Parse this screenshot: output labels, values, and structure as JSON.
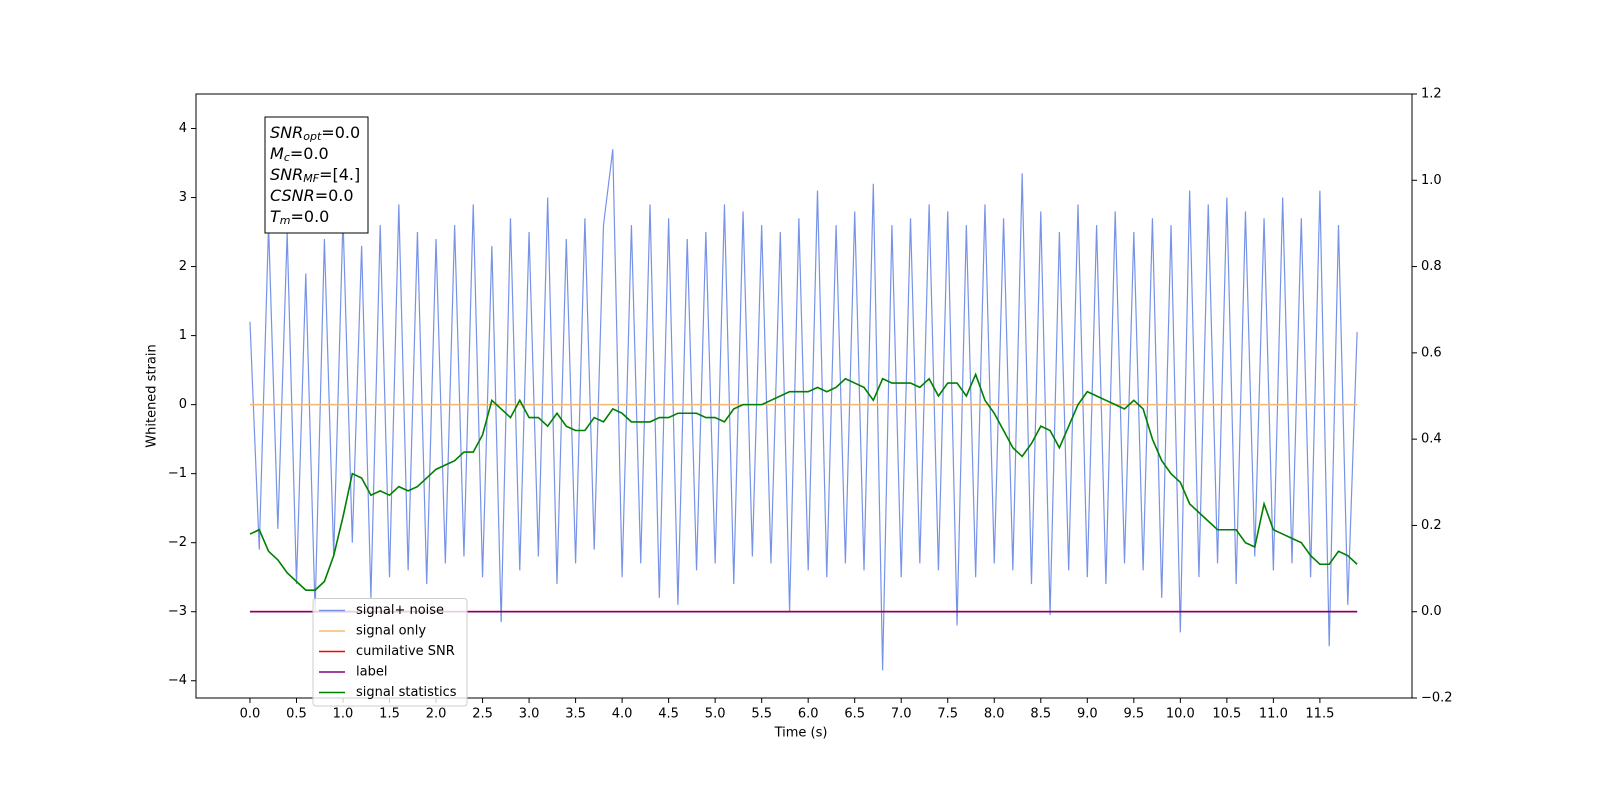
{
  "chart_data": {
    "type": "line",
    "xlabel": "Time (s)",
    "ylabel": "Whitened strain",
    "xlim": [
      -0.58,
      12.49
    ],
    "ylim": [
      -4.25,
      4.5
    ],
    "y2lim": [
      -0.2,
      1.2
    ],
    "xticks": [
      {
        "value": 0,
        "label": "0.0"
      },
      {
        "value": 0.5,
        "label": "0.5"
      },
      {
        "value": 1,
        "label": "1.0"
      },
      {
        "value": 1.5,
        "label": "1.5"
      },
      {
        "value": 2,
        "label": "2.0"
      },
      {
        "value": 2.5,
        "label": "2.5"
      },
      {
        "value": 3,
        "label": "3.0"
      },
      {
        "value": 3.5,
        "label": "3.5"
      },
      {
        "value": 4,
        "label": "4.0"
      },
      {
        "value": 4.5,
        "label": "4.5"
      },
      {
        "value": 5,
        "label": "5.0"
      },
      {
        "value": 5.5,
        "label": "5.5"
      },
      {
        "value": 6,
        "label": "6.0"
      },
      {
        "value": 6.5,
        "label": "6.5"
      },
      {
        "value": 7,
        "label": "7.0"
      },
      {
        "value": 7.5,
        "label": "7.5"
      },
      {
        "value": 8,
        "label": "8.0"
      },
      {
        "value": 8.5,
        "label": "8.5"
      },
      {
        "value": 9,
        "label": "9.0"
      },
      {
        "value": 9.5,
        "label": "9.5"
      },
      {
        "value": 10,
        "label": "10.0"
      },
      {
        "value": 10.5,
        "label": "10.5"
      },
      {
        "value": 11,
        "label": "11.0"
      },
      {
        "value": 11.5,
        "label": "11.5"
      }
    ],
    "yticks": [
      {
        "value": -4,
        "label": "−4"
      },
      {
        "value": -3,
        "label": "−3"
      },
      {
        "value": -2,
        "label": "−2"
      },
      {
        "value": -1,
        "label": "−1"
      },
      0,
      1,
      2,
      3,
      4
    ],
    "y2ticks": [
      {
        "value": -0.2,
        "label": "−0.2"
      },
      {
        "value": 0,
        "label": "0.0"
      },
      {
        "value": 0.2,
        "label": "0.2"
      },
      {
        "value": 0.4,
        "label": "0.4"
      },
      {
        "value": 0.6,
        "label": "0.6"
      },
      {
        "value": 0.8,
        "label": "0.8"
      },
      {
        "value": 1,
        "label": "1.0"
      },
      {
        "value": 1.2,
        "label": "1.2"
      }
    ],
    "legend": "lower left",
    "textbox": [
      {
        "symbol": "SNR",
        "subscript": "opt",
        "text": "=0.0"
      },
      {
        "symbol": "M",
        "subscript": "c",
        "text": "=0.0"
      },
      {
        "symbol": "SNR",
        "subscript": "MF",
        "text": "=[4.]"
      },
      {
        "symbol": "CSNR",
        "subscript": null,
        "text": "=0.0"
      },
      {
        "symbol": "T",
        "subscript": "m",
        "text": "=0.0"
      }
    ],
    "x": [
      0,
      0.1,
      0.2,
      0.3,
      0.4,
      0.5,
      0.6,
      0.7,
      0.8,
      0.9,
      1,
      1.1,
      1.2,
      1.3,
      1.4,
      1.5,
      1.6,
      1.7,
      1.8,
      1.9,
      2,
      2.1,
      2.2,
      2.3,
      2.4,
      2.5,
      2.6,
      2.7,
      2.8,
      2.9,
      3,
      3.1,
      3.2,
      3.3,
      3.4,
      3.5,
      3.6,
      3.7,
      3.8,
      3.9,
      4,
      4.1,
      4.2,
      4.3,
      4.4,
      4.5,
      4.6,
      4.7,
      4.8,
      4.9,
      5,
      5.1,
      5.2,
      5.3,
      5.4,
      5.5,
      5.6,
      5.7,
      5.8,
      5.9,
      6,
      6.1,
      6.2,
      6.3,
      6.4,
      6.5,
      6.6,
      6.7,
      6.8,
      6.9,
      7,
      7.1,
      7.2,
      7.3,
      7.4,
      7.5,
      7.6,
      7.7,
      7.8,
      7.9,
      8,
      8.1,
      8.2,
      8.3,
      8.4,
      8.5,
      8.6,
      8.7,
      8.8,
      8.9,
      9,
      9.1,
      9.2,
      9.3,
      9.4,
      9.5,
      9.6,
      9.7,
      9.8,
      9.9,
      10,
      10.1,
      10.2,
      10.3,
      10.4,
      10.5,
      10.6,
      10.7,
      10.8,
      10.9,
      11,
      11.1,
      11.2,
      11.3,
      11.4,
      11.5,
      11.6,
      11.7,
      11.8,
      11.9
    ],
    "series": [
      {
        "name": "signal+ noise",
        "color": "#7793e8",
        "values": [
          1.2,
          -2.1,
          2.6,
          -1.8,
          2.5,
          -2.6,
          1.9,
          -3.0,
          2.4,
          -2.2,
          2.7,
          -2.0,
          2.3,
          -2.8,
          2.6,
          -2.5,
          2.9,
          -2.4,
          2.5,
          -2.6,
          2.4,
          -2.3,
          2.6,
          -2.2,
          2.9,
          -2.5,
          2.3,
          -3.15,
          2.7,
          -2.4,
          2.5,
          -2.2,
          3.0,
          -2.6,
          2.4,
          -2.3,
          2.7,
          -2.1,
          2.6,
          3.7,
          -2.5,
          2.6,
          -2.3,
          2.9,
          -2.8,
          2.7,
          -2.9,
          2.4,
          -2.4,
          2.5,
          -2.3,
          2.9,
          -2.6,
          2.8,
          -2.2,
          2.6,
          -2.3,
          2.5,
          -3.0,
          2.7,
          -2.4,
          3.1,
          -2.5,
          2.6,
          -2.3,
          2.8,
          -2.4,
          3.2,
          -3.85,
          2.6,
          -2.5,
          2.7,
          -2.3,
          2.9,
          -2.4,
          2.8,
          -3.2,
          2.6,
          -2.5,
          2.9,
          -2.3,
          2.7,
          -2.4,
          3.35,
          -2.6,
          2.8,
          -3.05,
          2.5,
          -2.4,
          2.9,
          -2.5,
          2.6,
          -2.6,
          2.8,
          -2.3,
          2.5,
          -2.4,
          2.7,
          -2.8,
          2.6,
          -3.3,
          3.1,
          -2.5,
          2.9,
          -2.3,
          3.0,
          -2.6,
          2.8,
          -2.2,
          2.7,
          -2.4,
          3.0,
          -2.3,
          2.7,
          -2.5,
          3.1,
          -3.5,
          2.6,
          -2.9,
          1.05
        ]
      },
      {
        "name": "signal only",
        "color": "#f5b870",
        "values": [
          0,
          0,
          0,
          0,
          0,
          0,
          0,
          0,
          0,
          0,
          0,
          0,
          0,
          0,
          0,
          0,
          0,
          0,
          0,
          0,
          0,
          0,
          0,
          0,
          0,
          0,
          0,
          0,
          0,
          0,
          0,
          0,
          0,
          0,
          0,
          0,
          0,
          0,
          0,
          0,
          0,
          0,
          0,
          0,
          0,
          0,
          0,
          0,
          0,
          0,
          0,
          0,
          0,
          0,
          0,
          0,
          0,
          0,
          0,
          0,
          0,
          0,
          0,
          0,
          0,
          0,
          0,
          0,
          0,
          0,
          0,
          0,
          0,
          0,
          0,
          0,
          0,
          0,
          0,
          0,
          0,
          0,
          0,
          0,
          0,
          0,
          0,
          0,
          0,
          0,
          0,
          0,
          0,
          0,
          0,
          0,
          0,
          0,
          0,
          0,
          0,
          0,
          0,
          0,
          0,
          0,
          0,
          0,
          0,
          0,
          0,
          0,
          0,
          0,
          0,
          0,
          0,
          0,
          0,
          0
        ]
      },
      {
        "name": "cumilative SNR",
        "color": "#ff0000",
        "axis": "y2",
        "values": [
          0,
          0,
          0,
          0,
          0,
          0,
          0,
          0,
          0,
          0,
          0,
          0,
          0,
          0,
          0,
          0,
          0,
          0,
          0,
          0,
          0,
          0,
          0,
          0,
          0,
          0,
          0,
          0,
          0,
          0,
          0,
          0,
          0,
          0,
          0,
          0,
          0,
          0,
          0,
          0,
          0,
          0,
          0,
          0,
          0,
          0,
          0,
          0,
          0,
          0,
          0,
          0,
          0,
          0,
          0,
          0,
          0,
          0,
          0,
          0,
          0,
          0,
          0,
          0,
          0,
          0,
          0,
          0,
          0,
          0,
          0,
          0,
          0,
          0,
          0,
          0,
          0,
          0,
          0,
          0,
          0,
          0,
          0,
          0,
          0,
          0,
          0,
          0,
          0,
          0,
          0,
          0,
          0,
          0,
          0,
          0,
          0,
          0,
          0,
          0,
          0,
          0,
          0,
          0,
          0,
          0,
          0,
          0,
          0,
          0,
          0,
          0,
          0,
          0,
          0,
          0,
          0,
          0,
          0,
          0
        ]
      },
      {
        "name": "label",
        "color": "#800080",
        "axis": "y2",
        "values": [
          0,
          0,
          0,
          0,
          0,
          0,
          0,
          0,
          0,
          0,
          0,
          0,
          0,
          0,
          0,
          0,
          0,
          0,
          0,
          0,
          0,
          0,
          0,
          0,
          0,
          0,
          0,
          0,
          0,
          0,
          0,
          0,
          0,
          0,
          0,
          0,
          0,
          0,
          0,
          0,
          0,
          0,
          0,
          0,
          0,
          0,
          0,
          0,
          0,
          0,
          0,
          0,
          0,
          0,
          0,
          0,
          0,
          0,
          0,
          0,
          0,
          0,
          0,
          0,
          0,
          0,
          0,
          0,
          0,
          0,
          0,
          0,
          0,
          0,
          0,
          0,
          0,
          0,
          0,
          0,
          0,
          0,
          0,
          0,
          0,
          0,
          0,
          0,
          0,
          0,
          0,
          0,
          0,
          0,
          0,
          0,
          0,
          0,
          0,
          0,
          0,
          0,
          0,
          0,
          0,
          0,
          0,
          0,
          0,
          0,
          0,
          0,
          0,
          0,
          0,
          0,
          0,
          0,
          0,
          0
        ]
      },
      {
        "name": "signal statistics",
        "color": "#008000",
        "axis": "y2",
        "values": [
          0.18,
          0.19,
          0.14,
          0.12,
          0.09,
          0.07,
          0.05,
          0.05,
          0.07,
          0.13,
          0.22,
          0.32,
          0.31,
          0.27,
          0.28,
          0.27,
          0.29,
          0.28,
          0.29,
          0.31,
          0.33,
          0.34,
          0.35,
          0.37,
          0.37,
          0.41,
          0.49,
          0.47,
          0.45,
          0.49,
          0.45,
          0.45,
          0.43,
          0.46,
          0.43,
          0.42,
          0.42,
          0.45,
          0.44,
          0.47,
          0.46,
          0.44,
          0.44,
          0.44,
          0.45,
          0.45,
          0.46,
          0.46,
          0.46,
          0.45,
          0.45,
          0.44,
          0.47,
          0.48,
          0.48,
          0.48,
          0.49,
          0.5,
          0.51,
          0.51,
          0.51,
          0.52,
          0.51,
          0.52,
          0.54,
          0.53,
          0.52,
          0.49,
          0.54,
          0.53,
          0.53,
          0.53,
          0.52,
          0.54,
          0.5,
          0.53,
          0.53,
          0.5,
          0.55,
          0.49,
          0.46,
          0.42,
          0.38,
          0.36,
          0.39,
          0.43,
          0.42,
          0.38,
          0.43,
          0.48,
          0.51,
          0.5,
          0.49,
          0.48,
          0.47,
          0.49,
          0.47,
          0.4,
          0.35,
          0.32,
          0.3,
          0.25,
          0.23,
          0.21,
          0.19,
          0.19,
          0.19,
          0.16,
          0.15,
          0.25,
          0.19,
          0.18,
          0.17,
          0.16,
          0.13,
          0.11,
          0.11,
          0.14,
          0.13,
          0.11
        ]
      }
    ]
  }
}
